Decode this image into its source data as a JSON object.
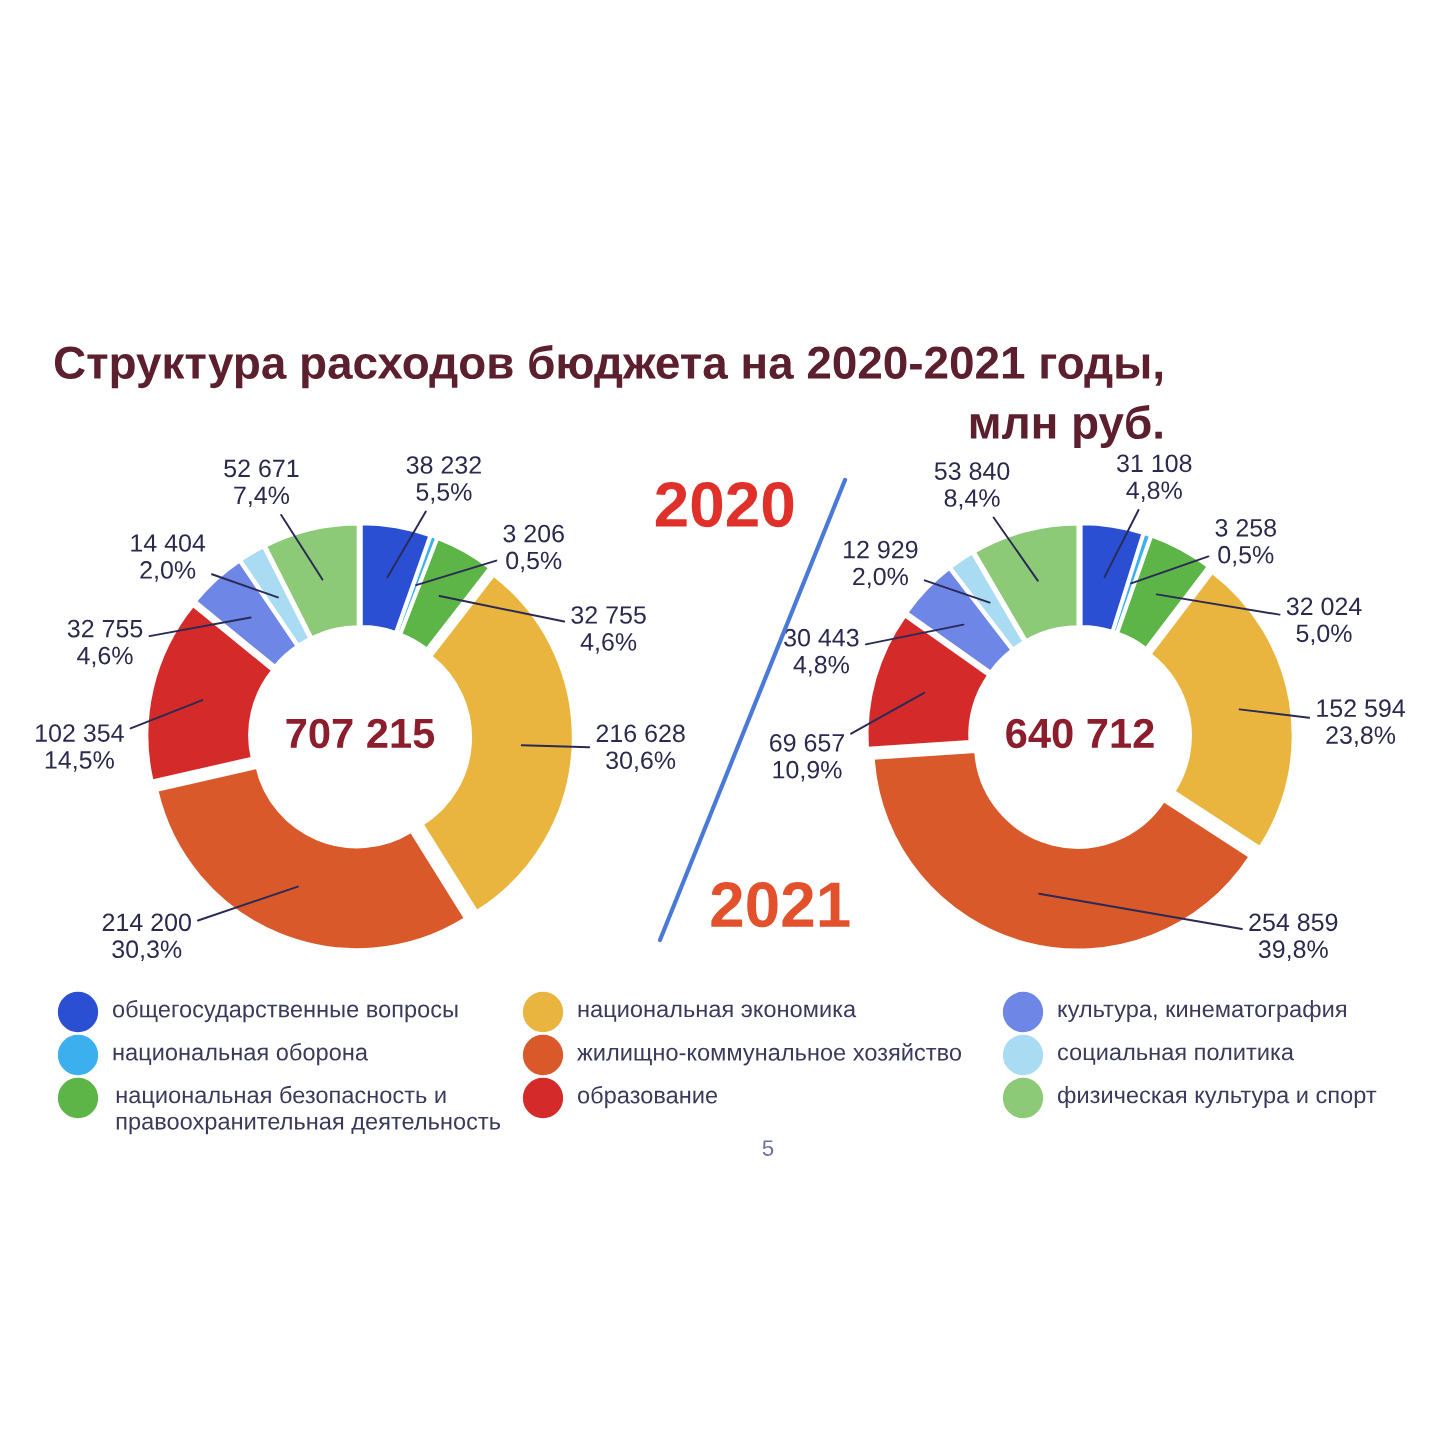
{
  "chart_data": [
    {
      "type": "donut",
      "title": "Структура расходов бюджета на 2020-2021 годы, млн руб.",
      "subtitle": "2020",
      "categories": [
        "общегосударственные вопросы",
        "национальная оборона",
        "национальная безопасность и правоохранительная деятельность",
        "национальная экономика",
        "жилищно-коммунальное хозяйство",
        "образование",
        "культура, кинематография",
        "социальная политика",
        "физическая культура и спорт"
      ],
      "values": [
        38232,
        3206,
        32755,
        216628,
        214200,
        102354,
        32755,
        14404,
        52671
      ],
      "colors": [
        "#2b4fd3",
        "#3cb0ef",
        "#5db547",
        "#eab53f",
        "#d9592b",
        "#d42a2a",
        "#6e86e6",
        "#a9dcf3",
        "#8dca78"
      ],
      "value_labels": [
        "38 232\n5,5%",
        "3 206\n0,5%",
        "32 755\n4,6%",
        "216 628\n30,6%",
        "214 200\n30,3%",
        "102 354\n14,5%",
        "32 755\n4,6%",
        "14 404\n2,0%",
        "52 671\n7,4%"
      ],
      "annotations": [
        "707 215"
      ],
      "legend": "bottom"
    },
    {
      "type": "donut",
      "subtitle": "2021",
      "categories": [
        null,
        null,
        null,
        null,
        null,
        null,
        null,
        null,
        null
      ],
      "values": [
        31108,
        3258,
        32024,
        152594,
        254859,
        69657,
        30443,
        12929,
        53840
      ],
      "colors": [
        "#2b4fd3",
        "#3cb0ef",
        "#5db547",
        "#eab53f",
        "#d9592b",
        "#d42a2a",
        "#6e86e6",
        "#a9dcf3",
        "#8dca78"
      ],
      "value_labels": [
        "31 108\n4,8%",
        "3 258\n0,5%",
        "32 024\n5,0%",
        "152 594\n23,8%",
        "254 859\n39,8%",
        "69 657\n10,9%",
        "30 443\n4,8%",
        "12 929\n2,0%",
        "53 840\n8,4%"
      ],
      "annotations": [
        "640 712",
        "5"
      ]
    }
  ]
}
